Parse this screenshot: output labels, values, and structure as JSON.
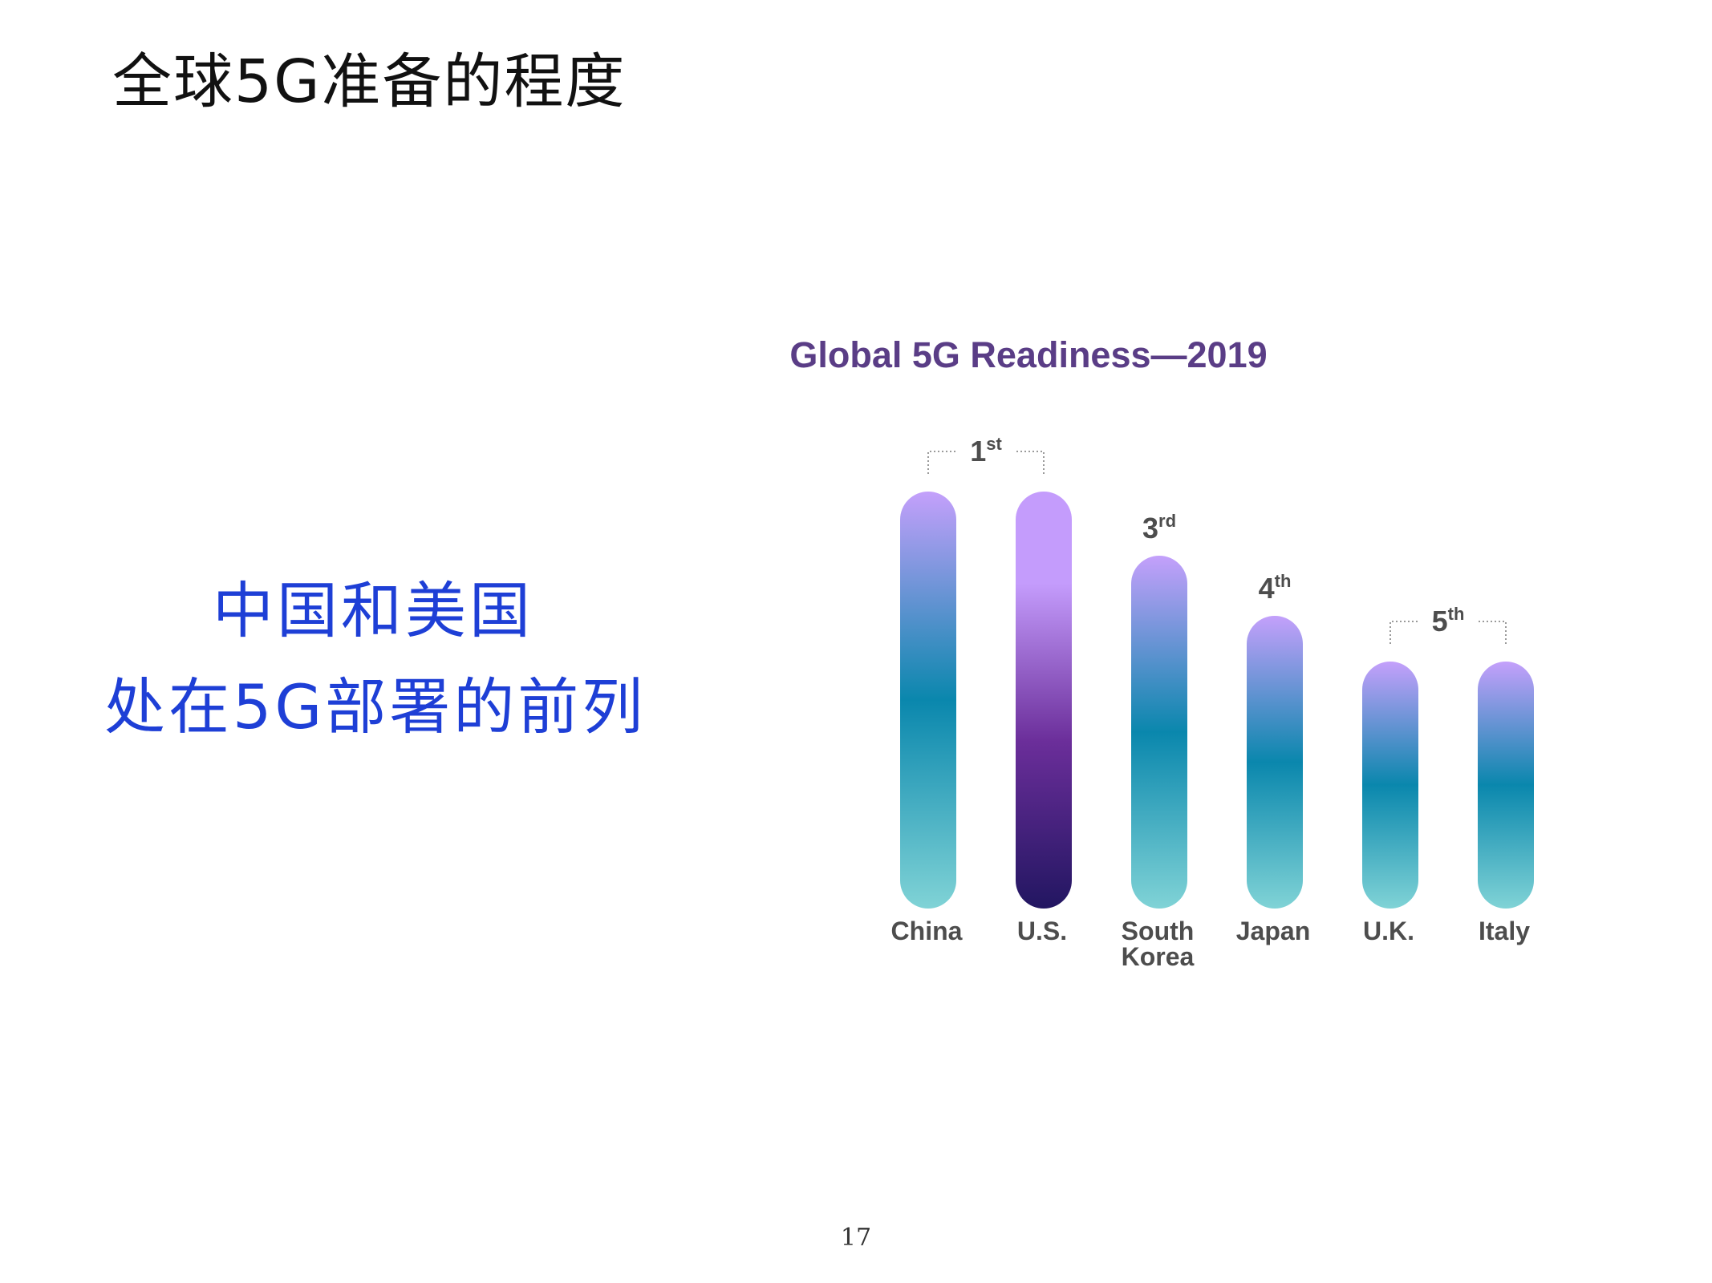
{
  "slide": {
    "title": "全球5G准备的程度",
    "note_line1": "中国和美国",
    "note_line2": "处在5G部署的前列",
    "page_number": "17"
  },
  "colors": {
    "title_purple": "#5a3d86",
    "label_gray": "#4d4d4d",
    "gradient_top": "#c4a0fb",
    "gradient_mid": "#0a87ad",
    "gradient_bottom": "#80d3d6",
    "us_top": "#c49cfc",
    "us_mid": "#6b2e9a",
    "us_bottom": "#221661",
    "bracket_gray": "#9a9a9a",
    "note_blue": "#1e3fd6"
  },
  "chart_data": {
    "type": "bar",
    "title": "Global 5G Readiness—2019",
    "categories": [
      [
        "China"
      ],
      [
        "U.S."
      ],
      [
        "South",
        "Korea"
      ],
      [
        "Japan"
      ],
      [
        "U.K."
      ],
      [
        "Italy"
      ]
    ],
    "values": [
      1,
      1,
      3,
      4,
      5,
      5
    ],
    "rank_labels": [
      {
        "num": "1",
        "sup": "st",
        "bars": [
          0,
          1
        ]
      },
      {
        "num": "3",
        "sup": "rd",
        "bars": [
          2
        ]
      },
      {
        "num": "4",
        "sup": "th",
        "bars": [
          3
        ]
      },
      {
        "num": "5",
        "sup": "th",
        "bars": [
          4,
          5
        ]
      }
    ],
    "highlight_bar": 1,
    "value_axis": "readiness rank (1 = most ready); bar height decreases with rank",
    "grid": false,
    "legend": "none"
  }
}
